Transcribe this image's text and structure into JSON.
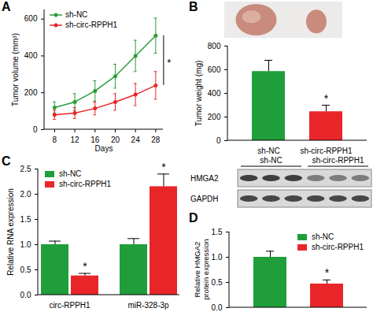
{
  "chart_data": [
    {
      "panel": "A",
      "type": "line",
      "x": [
        8,
        12,
        16,
        20,
        24,
        28
      ],
      "xlim": [
        6,
        29.5
      ],
      "xticks": [
        8,
        12,
        16,
        20,
        24,
        28
      ],
      "ylim": [
        0,
        650
      ],
      "yticks": [
        0,
        200,
        400,
        600
      ],
      "x_label": "Days",
      "y_label": "Tumor volume (mm³)",
      "legend": "top-left",
      "annotation": "*",
      "series": [
        {
          "name": "sh-NC",
          "color": "#2a9d3a",
          "marker": "circle",
          "values": [
            120,
            150,
            210,
            290,
            400,
            510
          ],
          "errors": [
            30,
            45,
            55,
            65,
            85,
            95
          ]
        },
        {
          "name": "sh-circ-RPPH1",
          "color": "#e8262a",
          "marker": "circle",
          "values": [
            80,
            90,
            115,
            150,
            190,
            240
          ],
          "errors": [
            25,
            30,
            35,
            45,
            60,
            75
          ]
        }
      ]
    },
    {
      "panel": "B",
      "type": "bar",
      "categories": [
        "sh-NC",
        "sh-circ-RPPH1"
      ],
      "values": [
        585,
        245
      ],
      "errors": [
        95,
        55
      ],
      "colors": [
        "#1f9e3a",
        "#e8262a"
      ],
      "annotations": [
        null,
        "*"
      ],
      "ylim": [
        0,
        800
      ],
      "yticks": [
        0,
        200,
        400,
        600,
        800
      ],
      "y_label": "Tumor weight (mg)"
    },
    {
      "panel": "C",
      "type": "grouped_bar",
      "categories": [
        "circ-RPPH1",
        "miR-328-3p"
      ],
      "series": [
        {
          "name": "sh-NC",
          "color": "#1f9e3a",
          "values": [
            1.0,
            1.0
          ],
          "errors": [
            0.07,
            0.12
          ],
          "annotations": [
            null,
            null
          ]
        },
        {
          "name": "sh-circ-RPPH1",
          "color": "#e8262a",
          "values": [
            0.38,
            2.15
          ],
          "errors": [
            0.05,
            0.25
          ],
          "annotations": [
            "*",
            "*"
          ]
        }
      ],
      "ylim": [
        0,
        2.5
      ],
      "yticks": [
        {
          "value": 0,
          "label": "0.0"
        },
        {
          "value": 0.5,
          "label": "0.5"
        },
        {
          "value": 1,
          "label": "1.0"
        },
        {
          "value": 1.5,
          "label": "1.5"
        },
        {
          "value": 2,
          "label": "2.0"
        },
        {
          "value": 2.5,
          "label": "2.5"
        }
      ],
      "y_label": "Relative RNA expression",
      "legend": "top-left"
    },
    {
      "panel": "D",
      "type": "bar",
      "categories": [
        "sh-NC",
        "sh-circ-RPPH1"
      ],
      "values": [
        1.0,
        0.47
      ],
      "errors": [
        0.12,
        0.08
      ],
      "colors": [
        "#1f9e3a",
        "#e8262a"
      ],
      "annotations": [
        null,
        "*"
      ],
      "ylim": [
        0,
        1.5
      ],
      "yticks": [
        {
          "value": 0,
          "label": "0.0"
        },
        {
          "value": 0.5,
          "label": "0.5"
        },
        {
          "value": 1,
          "label": "1.0"
        },
        {
          "value": 1.5,
          "label": "1.5"
        }
      ],
      "y_label": "Relative HMGA2 protein expression",
      "legend": "top-right",
      "tick_labels": "y",
      "blot": {
        "groups": [
          "sh-NC",
          "sh-circ-RPPH1"
        ],
        "rows": [
          "HMGA2",
          "GAPDH"
        ]
      }
    }
  ]
}
